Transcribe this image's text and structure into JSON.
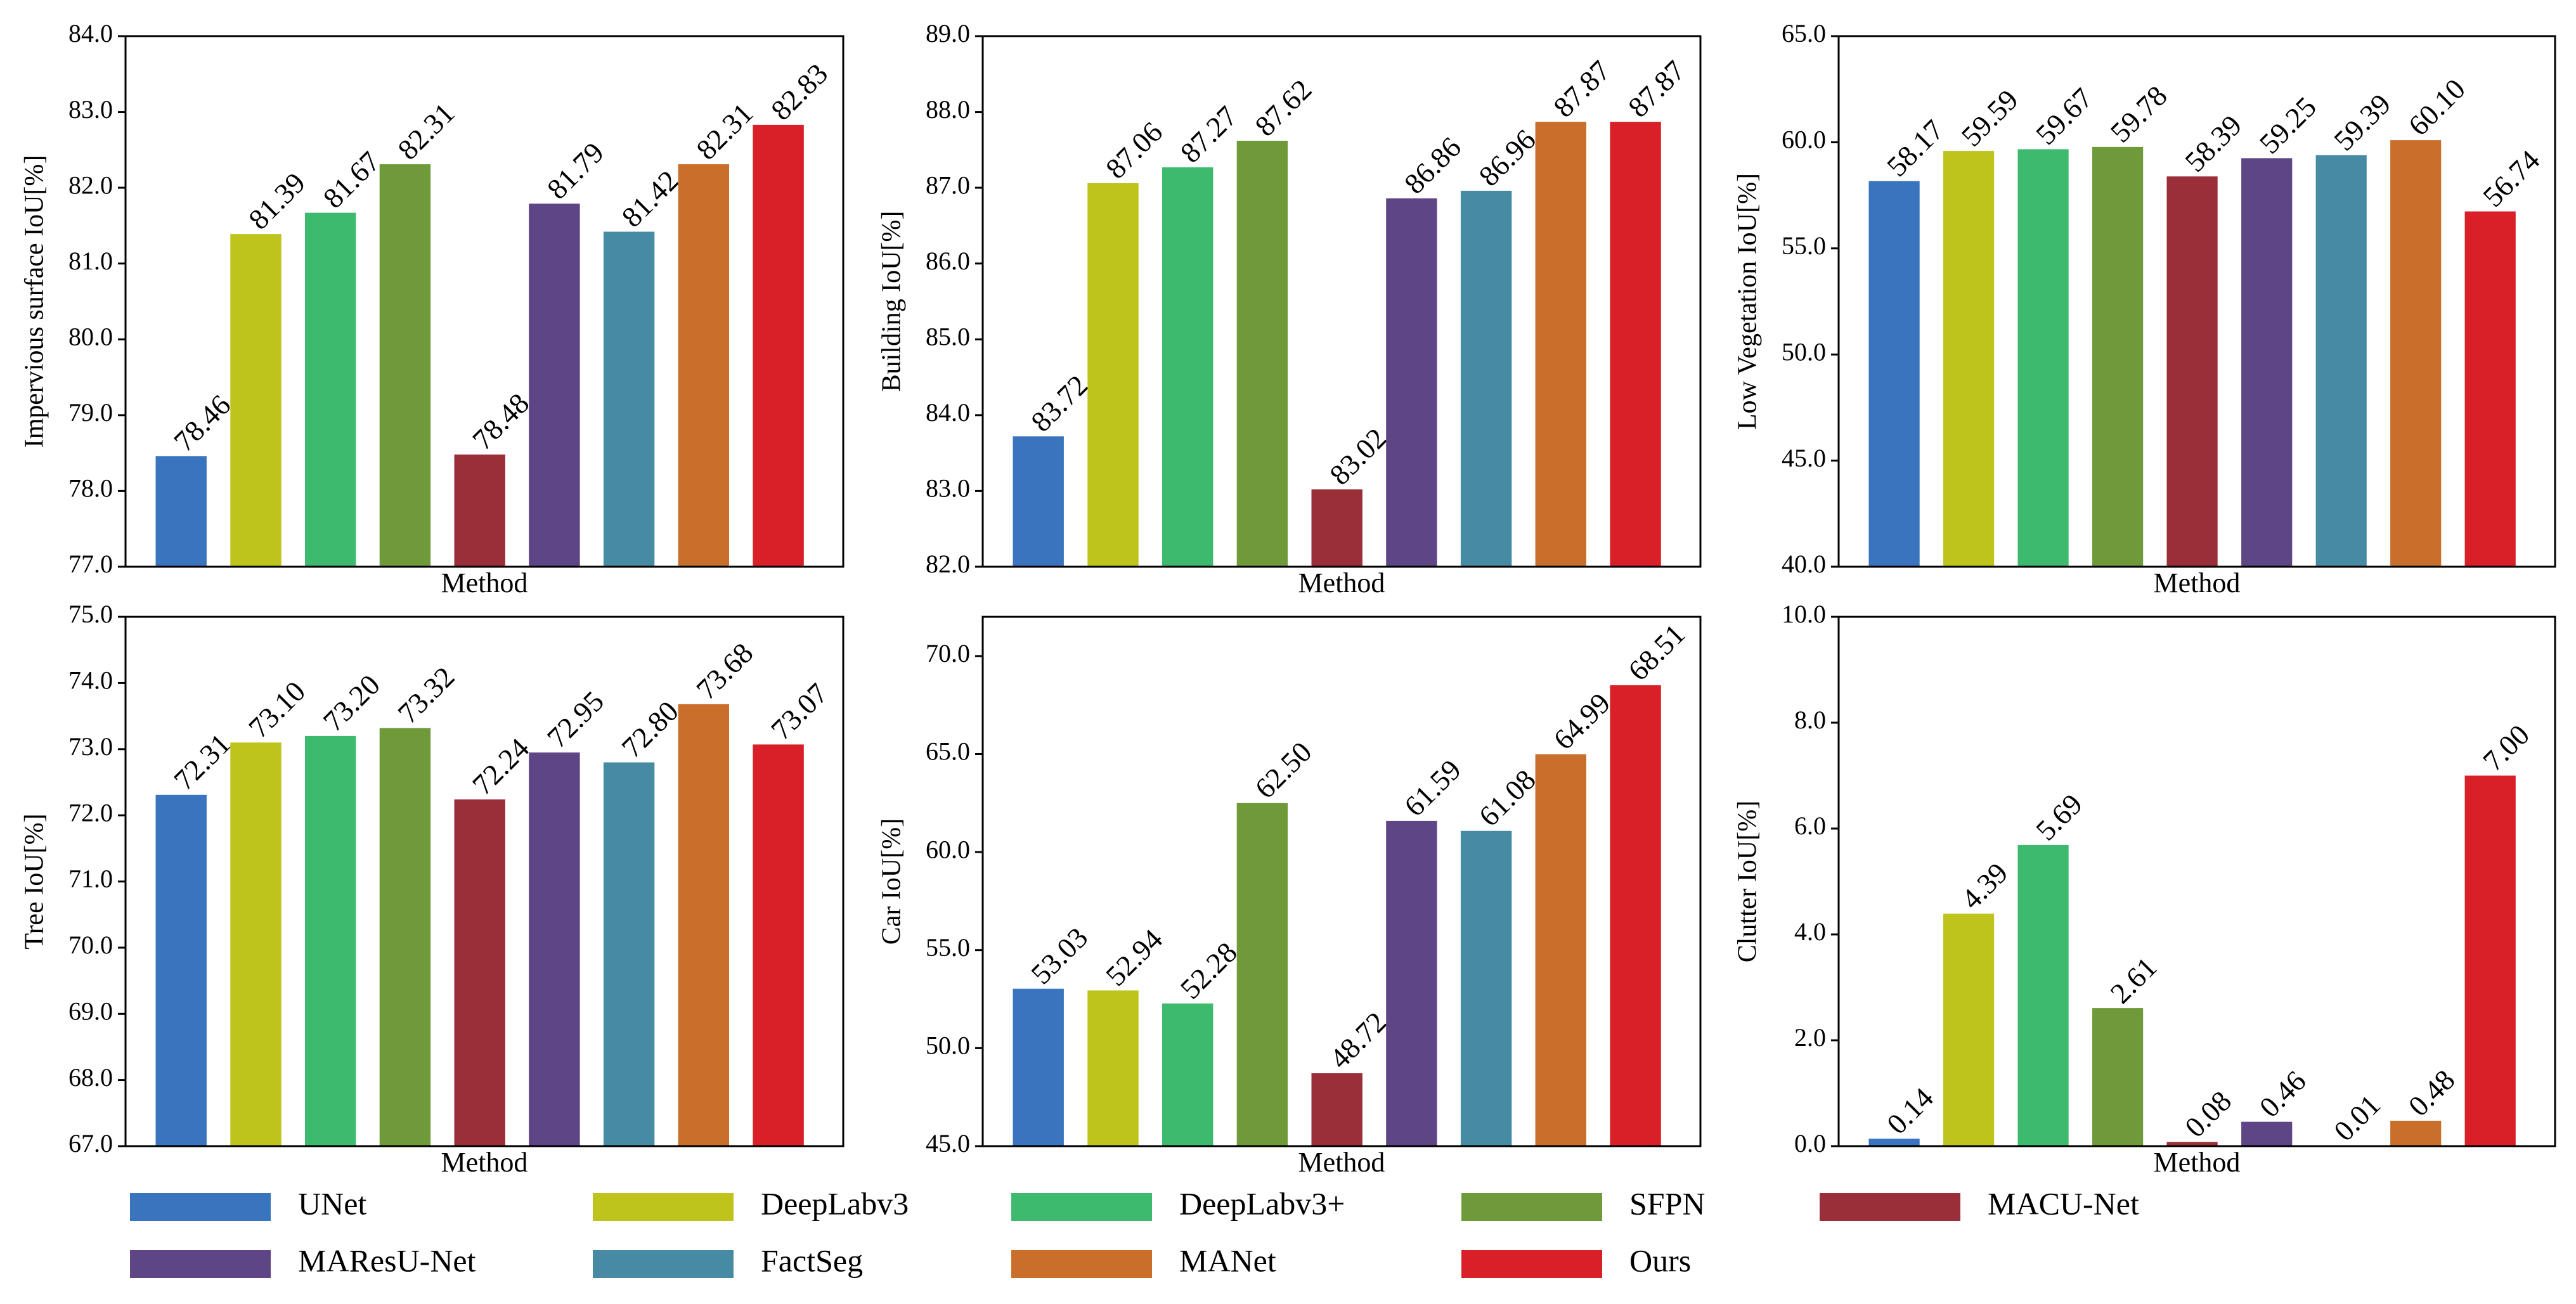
{
  "methods": [
    "UNet",
    "DeepLabv3",
    "DeepLabv3+",
    "SFPN",
    "MACU-Net",
    "MAResU-Net",
    "FactSeg",
    "MANet",
    "Ours"
  ],
  "colors": [
    "#3a74bf",
    "#bfc41c",
    "#3dba6e",
    "#6f9a3a",
    "#9a2f3a",
    "#5e4585",
    "#468ba3",
    "#c96e2b",
    "#d92028"
  ],
  "chart_data": [
    {
      "type": "bar",
      "xlabel": "Method",
      "ylabel": "Impervious surface IoU[%]",
      "ylim": [
        77.0,
        84.0
      ],
      "yticks": [
        "77.0",
        "78.0",
        "79.0",
        "80.0",
        "81.0",
        "82.0",
        "83.0",
        "84.0"
      ],
      "values": [
        78.46,
        81.39,
        81.67,
        82.31,
        78.48,
        81.79,
        81.42,
        82.31,
        82.83
      ],
      "labels": [
        "78.46",
        "81.39",
        "81.67",
        "82.31",
        "78.48",
        "81.79",
        "81.42",
        "82.31",
        "82.83"
      ]
    },
    {
      "type": "bar",
      "xlabel": "Method",
      "ylabel": "Building IoU[%]",
      "ylim": [
        82.0,
        89.0
      ],
      "yticks": [
        "82.0",
        "83.0",
        "84.0",
        "85.0",
        "86.0",
        "87.0",
        "88.0",
        "89.0"
      ],
      "values": [
        83.72,
        87.06,
        87.27,
        87.62,
        83.02,
        86.86,
        86.96,
        87.87,
        87.87
      ],
      "labels": [
        "83.72",
        "87.06",
        "87.27",
        "87.62",
        "83.02",
        "86.86",
        "86.96",
        "87.87",
        "87.87"
      ]
    },
    {
      "type": "bar",
      "xlabel": "Method",
      "ylabel": "Low Vegetation IoU[%]",
      "ylim": [
        40.0,
        65.0
      ],
      "yticks": [
        "40.0",
        "45.0",
        "50.0",
        "55.0",
        "60.0",
        "65.0"
      ],
      "values": [
        58.17,
        59.59,
        59.67,
        59.78,
        58.39,
        59.25,
        59.39,
        60.1,
        56.74
      ],
      "labels": [
        "58.17",
        "59.59",
        "59.67",
        "59.78",
        "58.39",
        "59.25",
        "59.39",
        "60.10",
        "56.74"
      ]
    },
    {
      "type": "bar",
      "xlabel": "Method",
      "ylabel": "Tree IoU[%]",
      "ylim": [
        67.0,
        75.0
      ],
      "yticks": [
        "67.0",
        "68.0",
        "69.0",
        "70.0",
        "71.0",
        "72.0",
        "73.0",
        "74.0",
        "75.0"
      ],
      "values": [
        72.31,
        73.1,
        73.2,
        73.32,
        72.24,
        72.95,
        72.8,
        73.68,
        73.07
      ],
      "labels": [
        "72.31",
        "73.10",
        "73.20",
        "73.32",
        "72.24",
        "72.95",
        "72.80",
        "73.68",
        "73.07"
      ]
    },
    {
      "type": "bar",
      "xlabel": "Method",
      "ylabel": "Car IoU[%]",
      "ylim": [
        45.0,
        72.0
      ],
      "yticks": [
        "45.0",
        "50.0",
        "55.0",
        "60.0",
        "65.0",
        "70.0"
      ],
      "values": [
        53.03,
        52.94,
        52.28,
        62.5,
        48.72,
        61.59,
        61.08,
        64.99,
        68.51
      ],
      "labels": [
        "53.03",
        "52.94",
        "52.28",
        "62.50",
        "48.72",
        "61.59",
        "61.08",
        "64.99",
        "68.51"
      ]
    },
    {
      "type": "bar",
      "xlabel": "Method",
      "ylabel": "Clutter IoU[%]",
      "ylim": [
        0.0,
        10.0
      ],
      "yticks": [
        "0.0",
        "2.0",
        "4.0",
        "6.0",
        "8.0",
        "10.0"
      ],
      "values": [
        0.14,
        4.39,
        5.69,
        2.61,
        0.08,
        0.46,
        0.01,
        0.48,
        7.0
      ],
      "labels": [
        "0.14",
        "4.39",
        "5.69",
        "2.61",
        "0.08",
        "0.46",
        "0.01",
        "0.48",
        "7.00"
      ]
    }
  ]
}
